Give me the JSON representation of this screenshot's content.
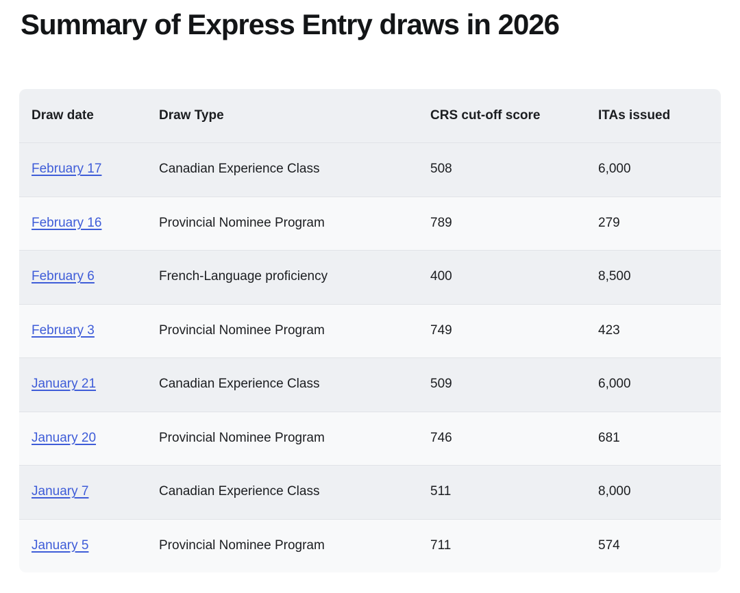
{
  "page": {
    "title": "Summary of Express Entry draws in 2026"
  },
  "colors": {
    "link": "#3E5CD8",
    "header_bg": "#EEF0F3",
    "row_odd_bg": "#EEF0F3",
    "row_even_bg": "#F8F9FA",
    "divider": "#E1E3E7",
    "text": "#1B1D20",
    "title": "#131517"
  },
  "table": {
    "columns": [
      "Draw date",
      "Draw Type",
      "CRS cut-off score",
      "ITAs issued"
    ],
    "rows": [
      {
        "draw_date": "February 17",
        "draw_type": "Canadian Experience Class",
        "crs_cutoff": "508",
        "itas_issued": "6,000"
      },
      {
        "draw_date": "February 16",
        "draw_type": "Provincial Nominee Program",
        "crs_cutoff": "789",
        "itas_issued": "279"
      },
      {
        "draw_date": "February 6",
        "draw_type": "French-Language proficiency",
        "crs_cutoff": "400",
        "itas_issued": "8,500"
      },
      {
        "draw_date": "February 3",
        "draw_type": "Provincial Nominee Program",
        "crs_cutoff": "749",
        "itas_issued": "423"
      },
      {
        "draw_date": "January 21",
        "draw_type": "Canadian Experience Class",
        "crs_cutoff": "509",
        "itas_issued": "6,000"
      },
      {
        "draw_date": "January 20",
        "draw_type": "Provincial Nominee Program",
        "crs_cutoff": "746",
        "itas_issued": "681"
      },
      {
        "draw_date": "January 7",
        "draw_type": "Canadian Experience Class",
        "crs_cutoff": "511",
        "itas_issued": "8,000"
      },
      {
        "draw_date": "January 5",
        "draw_type": "Provincial Nominee Program",
        "crs_cutoff": "711",
        "itas_issued": "574"
      }
    ]
  }
}
